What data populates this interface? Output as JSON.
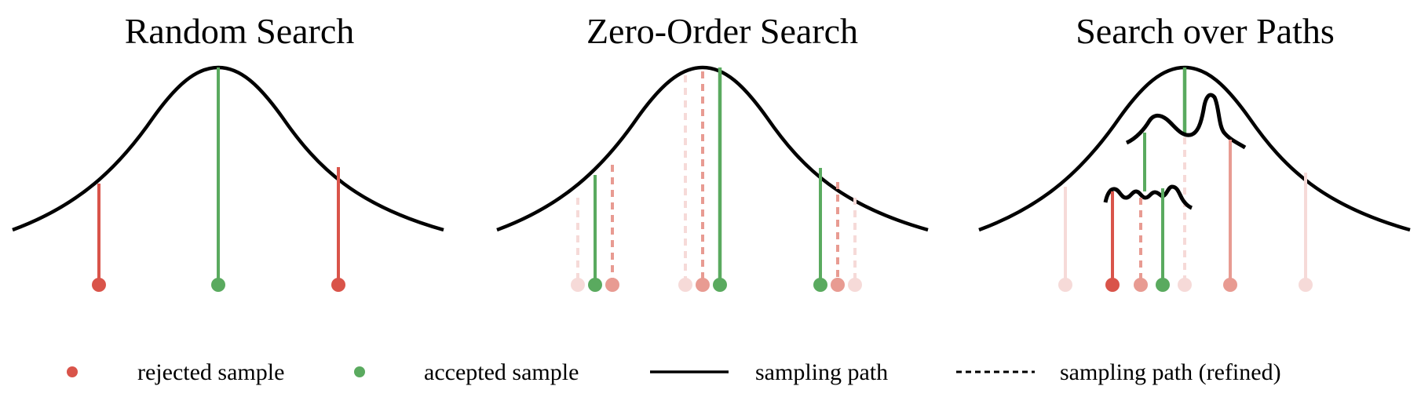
{
  "colors": {
    "rejected": "#d9544a",
    "accepted": "#5aaa5f",
    "curve": "#000000",
    "faint_rejected": "#f6dad8",
    "medium_rejected": "#e89b92"
  },
  "panels": [
    {
      "title": "Random Search"
    },
    {
      "title": "Zero-Order Search"
    },
    {
      "title": "Search over Paths"
    }
  ],
  "legend": [
    {
      "marker": "dot",
      "color_key": "rejected",
      "label": "rejected sample"
    },
    {
      "marker": "dot",
      "color_key": "accepted",
      "label": "accepted sample"
    },
    {
      "marker": "solid-line",
      "label": "sampling path"
    },
    {
      "marker": "dashed-line",
      "label": "sampling path (refined)"
    }
  ]
}
